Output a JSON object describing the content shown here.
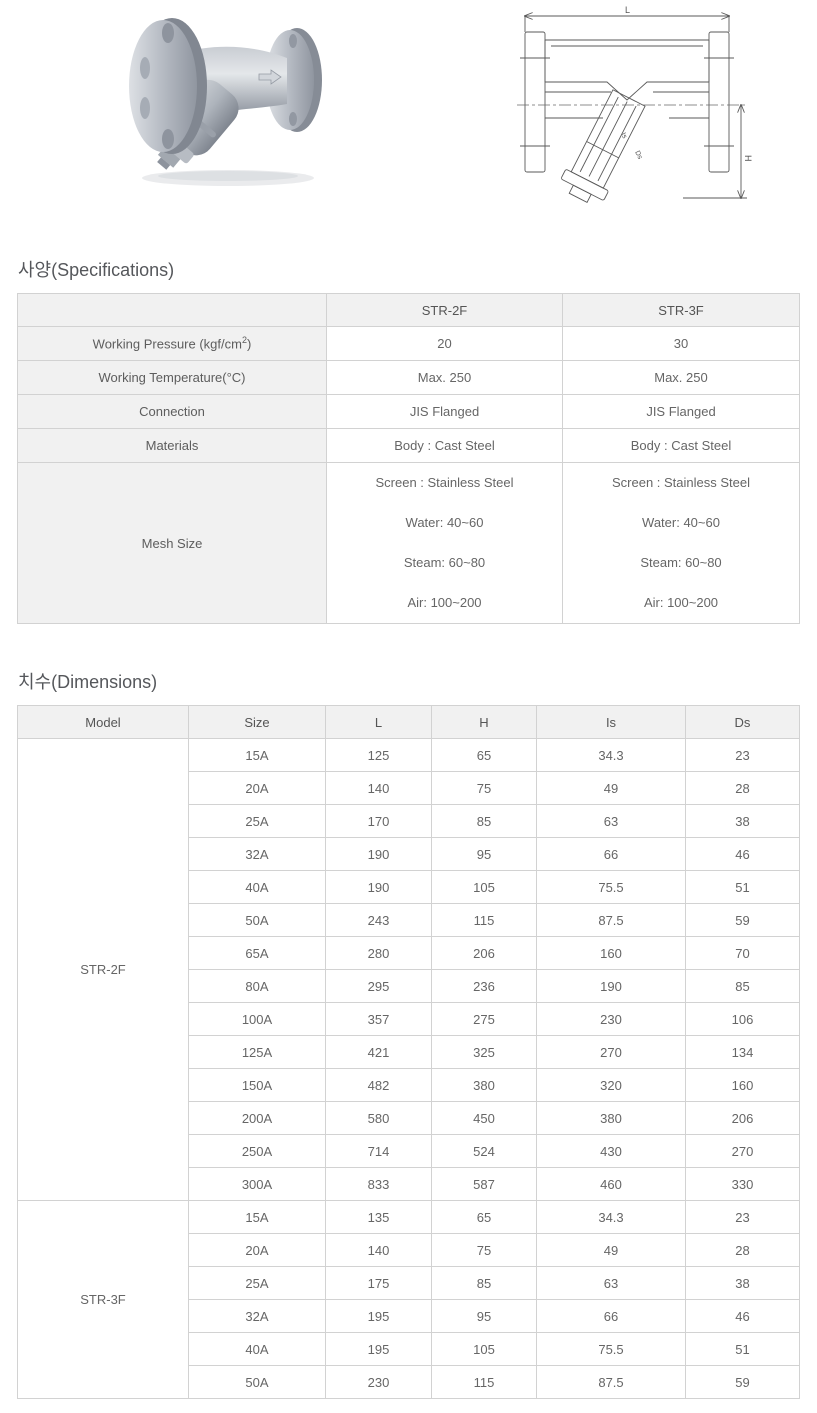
{
  "hero": {
    "photo_name": "y-strainer-product-photo",
    "drawing": {
      "length_label": "L",
      "height_label": "H",
      "screen_length_label": "Is",
      "screen_dia_label": "Ds"
    }
  },
  "specifications": {
    "title": "사양(Specifications)",
    "columns": [
      "",
      "STR-2F",
      "STR-3F"
    ],
    "rows": [
      {
        "label": "Working Pressure (kgf/cm",
        "label_sup": "2",
        "label_after": ")",
        "str2f": "20",
        "str3f": "30"
      },
      {
        "label": "Working Temperature(°C)",
        "str2f": "Max. 250",
        "str3f": "Max. 250"
      },
      {
        "label": "Connection",
        "str2f": "JIS Flanged",
        "str3f": "JIS Flanged"
      },
      {
        "label": "Materials",
        "str2f": "Body : Cast Steel",
        "str3f": "Body : Cast Steel"
      },
      {
        "label": "Mesh Size",
        "str2f_lines": [
          "Screen : Stainless Steel",
          "Water: 40~60",
          "Steam: 60~80",
          "Air: 100~200"
        ],
        "str3f_lines": [
          "Screen : Stainless Steel",
          "Water: 40~60",
          "Steam: 60~80",
          "Air: 100~200"
        ]
      }
    ]
  },
  "dimensions": {
    "title": "치수(Dimensions)",
    "columns": [
      "Model",
      "Size",
      "L",
      "H",
      "Is",
      "Ds"
    ],
    "groups": [
      {
        "model": "STR-2F",
        "rows": [
          {
            "size": "15A",
            "l": "125",
            "h": "65",
            "is": "34.3",
            "ds": "23"
          },
          {
            "size": "20A",
            "l": "140",
            "h": "75",
            "is": "49",
            "ds": "28"
          },
          {
            "size": "25A",
            "l": "170",
            "h": "85",
            "is": "63",
            "ds": "38"
          },
          {
            "size": "32A",
            "l": "190",
            "h": "95",
            "is": "66",
            "ds": "46"
          },
          {
            "size": "40A",
            "l": "190",
            "h": "105",
            "is": "75.5",
            "ds": "51"
          },
          {
            "size": "50A",
            "l": "243",
            "h": "115",
            "is": "87.5",
            "ds": "59"
          },
          {
            "size": "65A",
            "l": "280",
            "h": "206",
            "is": "160",
            "ds": "70"
          },
          {
            "size": "80A",
            "l": "295",
            "h": "236",
            "is": "190",
            "ds": "85"
          },
          {
            "size": "100A",
            "l": "357",
            "h": "275",
            "is": "230",
            "ds": "106"
          },
          {
            "size": "125A",
            "l": "421",
            "h": "325",
            "is": "270",
            "ds": "134"
          },
          {
            "size": "150A",
            "l": "482",
            "h": "380",
            "is": "320",
            "ds": "160"
          },
          {
            "size": "200A",
            "l": "580",
            "h": "450",
            "is": "380",
            "ds": "206"
          },
          {
            "size": "250A",
            "l": "714",
            "h": "524",
            "is": "430",
            "ds": "270"
          },
          {
            "size": "300A",
            "l": "833",
            "h": "587",
            "is": "460",
            "ds": "330"
          }
        ]
      },
      {
        "model": "STR-3F",
        "rows": [
          {
            "size": "15A",
            "l": "135",
            "h": "65",
            "is": "34.3",
            "ds": "23"
          },
          {
            "size": "20A",
            "l": "140",
            "h": "75",
            "is": "49",
            "ds": "28"
          },
          {
            "size": "25A",
            "l": "175",
            "h": "85",
            "is": "63",
            "ds": "38"
          },
          {
            "size": "32A",
            "l": "195",
            "h": "95",
            "is": "66",
            "ds": "46"
          },
          {
            "size": "40A",
            "l": "195",
            "h": "105",
            "is": "75.5",
            "ds": "51"
          },
          {
            "size": "50A",
            "l": "230",
            "h": "115",
            "is": "87.5",
            "ds": "59"
          }
        ]
      }
    ]
  }
}
